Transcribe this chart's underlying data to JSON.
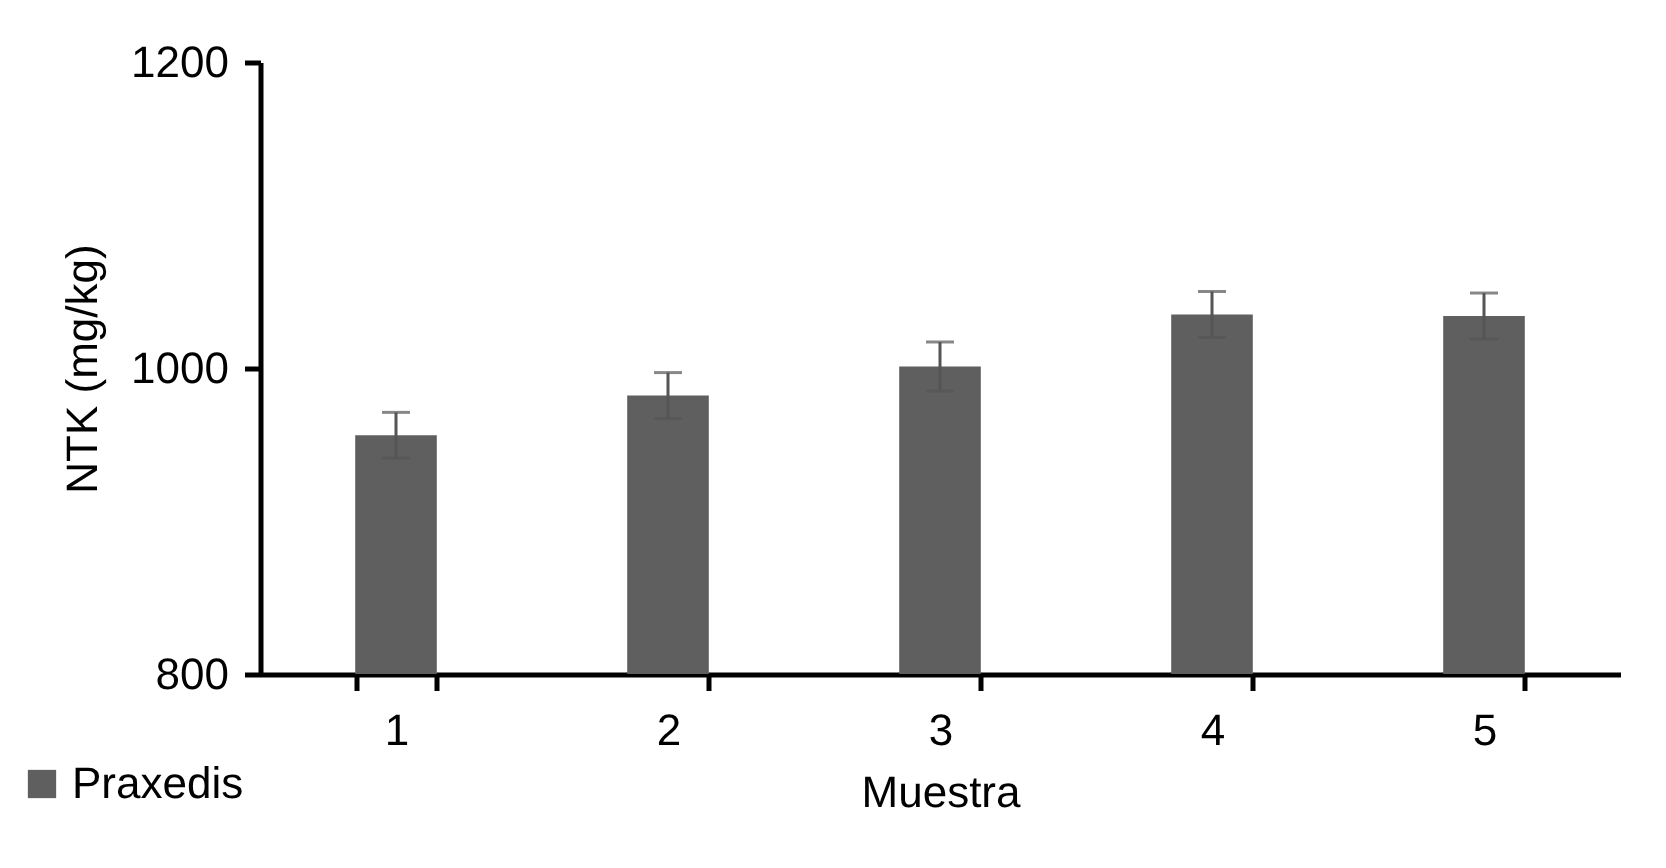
{
  "chart_data": {
    "type": "bar",
    "xlabel": "Muestra",
    "ylabel": "NTK (mg/kg)",
    "categories": [
      "1",
      "2",
      "3",
      "4",
      "5"
    ],
    "series": [
      {
        "name": "Praxedis",
        "color": "#5f5f5f",
        "values": [
          956,
          982,
          1001,
          1035,
          1034
        ],
        "errors": [
          15,
          15,
          16,
          15,
          15
        ]
      }
    ],
    "ylim": [
      800,
      1200
    ],
    "yticks": [
      800,
      1000,
      1200
    ],
    "grid": false,
    "legend": "bottom left"
  }
}
